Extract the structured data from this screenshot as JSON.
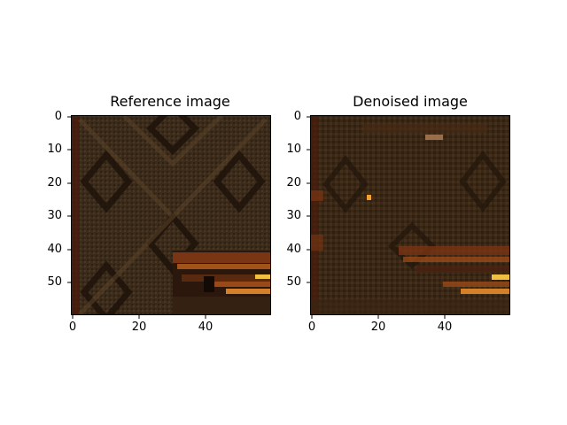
{
  "panels": [
    {
      "title": "Reference image",
      "y_ticks": [
        "0",
        "10",
        "20",
        "30",
        "40",
        "50"
      ],
      "x_ticks": [
        "0",
        "20",
        "40"
      ]
    },
    {
      "title": "Denoised image",
      "y_ticks": [
        "0",
        "10",
        "20",
        "30",
        "40",
        "50"
      ],
      "x_ticks": [
        "0",
        "20",
        "40"
      ]
    }
  ],
  "colors": {
    "base": "#3a2a1a",
    "dark": "#1f140a",
    "light": "#5a4026",
    "accent_orange": "#c0631e",
    "accent_yellow": "#f2c040",
    "edge_red": "#4a1c0c"
  }
}
